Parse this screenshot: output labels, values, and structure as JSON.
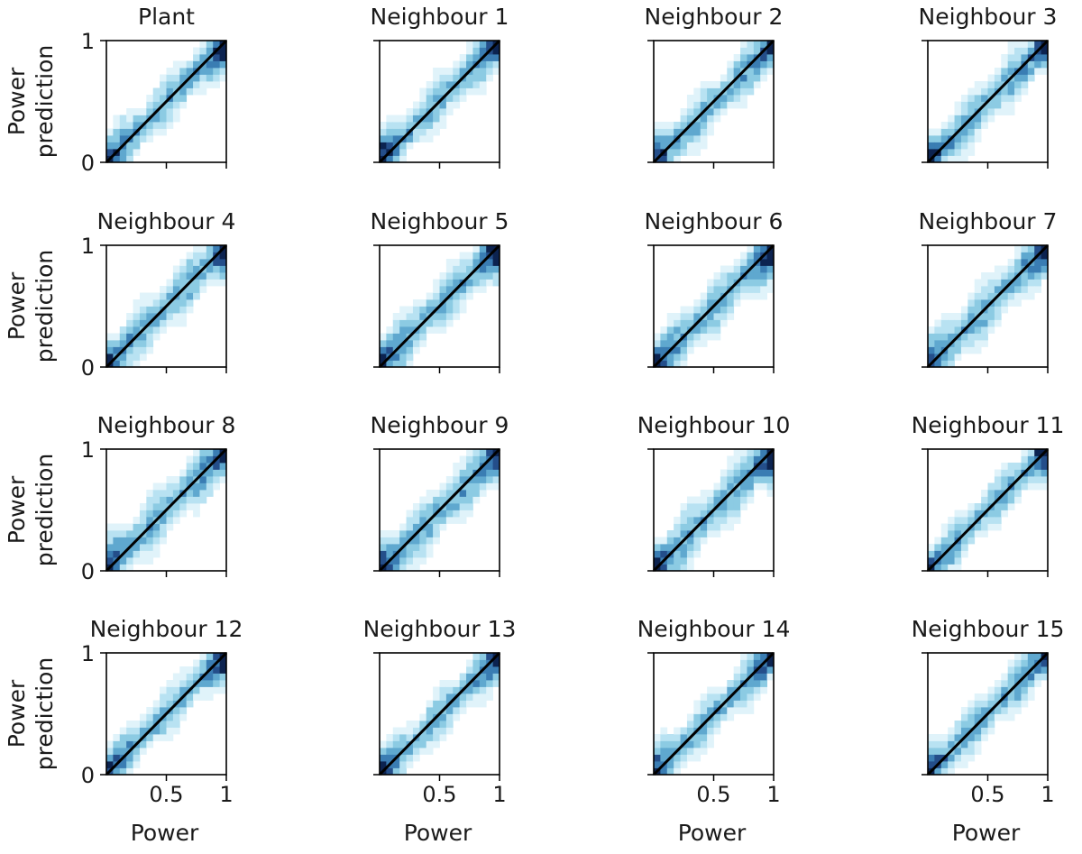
{
  "chart_data": {
    "type": "heatmap",
    "description_kind": "grid of 2D histograms of predicted vs actual power with identity line",
    "xlabel": "Power",
    "ylabel_lines": [
      "Power",
      "prediction"
    ],
    "xlim": [
      0,
      1
    ],
    "ylim": [
      0,
      1
    ],
    "x_tick_labels": [
      "0.5",
      "1"
    ],
    "x_tick_values": [
      0.5,
      1
    ],
    "y_tick_labels": [
      "0",
      "1"
    ],
    "y_tick_values": [
      0,
      1
    ],
    "reference_line": {
      "from": [
        0,
        0
      ],
      "to": [
        1,
        1
      ],
      "color": "#000000"
    },
    "bins": 18,
    "colormap": [
      "#ffffff",
      "#e0f3fa",
      "#b8e2f2",
      "#8ccbe3",
      "#5fa8cf",
      "#3a7db3",
      "#244e8a",
      "#0c2350"
    ],
    "panels": [
      {
        "title": "Plant"
      },
      {
        "title": "Neighbour 1"
      },
      {
        "title": "Neighbour 2"
      },
      {
        "title": "Neighbour 3"
      },
      {
        "title": "Neighbour 4"
      },
      {
        "title": "Neighbour 5"
      },
      {
        "title": "Neighbour 6"
      },
      {
        "title": "Neighbour 7"
      },
      {
        "title": "Neighbour 8"
      },
      {
        "title": "Neighbour 9"
      },
      {
        "title": "Neighbour 10"
      },
      {
        "title": "Neighbour 11"
      },
      {
        "title": "Neighbour 12"
      },
      {
        "title": "Neighbour 13"
      },
      {
        "title": "Neighbour 14"
      },
      {
        "title": "Neighbour 15"
      }
    ]
  }
}
